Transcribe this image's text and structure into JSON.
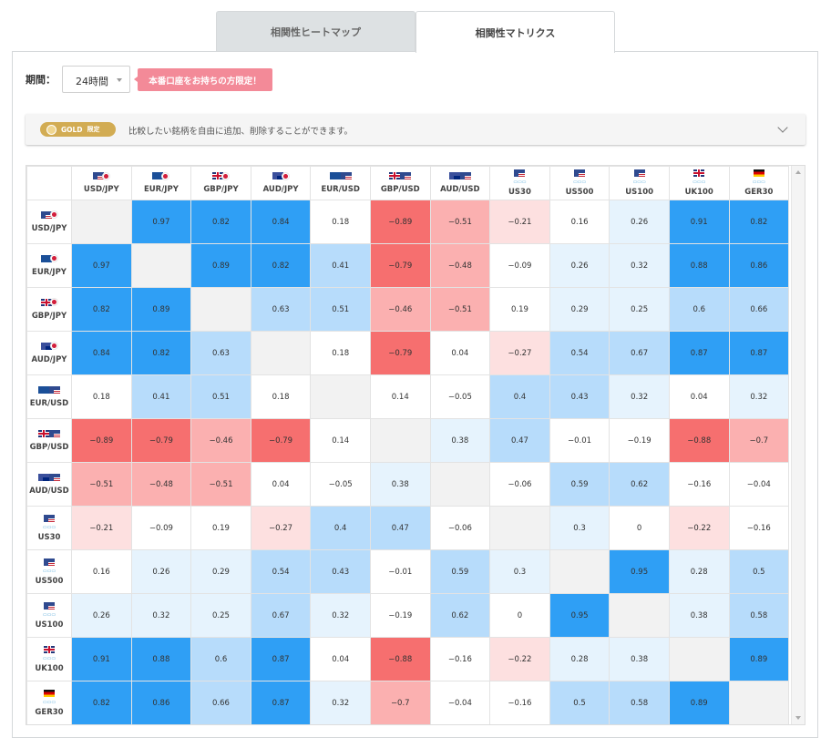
{
  "tabs": [
    {
      "label": "相関性ヒートマップ",
      "active": false
    },
    {
      "label": "相関性マトリクス",
      "active": true
    }
  ],
  "period": {
    "label": "期間：",
    "value": "24時間"
  },
  "promo": "本番口座をお持ちの方限定！",
  "gold": {
    "badge": "GOLD",
    "limit": "限定",
    "text": "比較したい銘柄を自由に追加、削除することができます。"
  },
  "colors": {
    "pos_strong": "#2f9ff5",
    "pos_mid": "#b7dcfb",
    "pos_light": "#e6f3fd",
    "neg_strong": "#f66f6f",
    "neg_mid": "#fbb0b0",
    "neg_light": "#fde0e0",
    "diag": "#f2f2f2"
  },
  "symbols": [
    {
      "name": "USD/JPY",
      "flags": [
        "us",
        "jp"
      ]
    },
    {
      "name": "EUR/JPY",
      "flags": [
        "eu",
        "jp"
      ]
    },
    {
      "name": "GBP/JPY",
      "flags": [
        "gb",
        "jp"
      ]
    },
    {
      "name": "AUD/JPY",
      "flags": [
        "au",
        "jp"
      ]
    },
    {
      "name": "EUR/USD",
      "flags": [
        "eu",
        "us"
      ]
    },
    {
      "name": "GBP/USD",
      "flags": [
        "gb",
        "us"
      ]
    },
    {
      "name": "AUD/USD",
      "flags": [
        "au",
        "us"
      ]
    },
    {
      "name": "US30",
      "flags": [
        "us"
      ]
    },
    {
      "name": "US500",
      "flags": [
        "us"
      ]
    },
    {
      "name": "US100",
      "flags": [
        "us"
      ]
    },
    {
      "name": "UK100",
      "flags": [
        "gb"
      ]
    },
    {
      "name": "GER30",
      "flags": [
        "de"
      ]
    }
  ],
  "matrix": [
    [
      null,
      0.97,
      0.82,
      0.84,
      0.18,
      -0.89,
      -0.51,
      -0.21,
      0.16,
      0.26,
      0.91,
      0.82
    ],
    [
      0.97,
      null,
      0.89,
      0.82,
      0.41,
      -0.79,
      -0.48,
      -0.09,
      0.26,
      0.32,
      0.88,
      0.86
    ],
    [
      0.82,
      0.89,
      null,
      0.63,
      0.51,
      -0.46,
      -0.51,
      0.19,
      0.29,
      0.25,
      0.6,
      0.66
    ],
    [
      0.84,
      0.82,
      0.63,
      null,
      0.18,
      -0.79,
      0.04,
      -0.27,
      0.54,
      0.67,
      0.87,
      0.87
    ],
    [
      0.18,
      0.41,
      0.51,
      0.18,
      null,
      0.14,
      -0.05,
      0.4,
      0.43,
      0.32,
      0.04,
      0.32
    ],
    [
      -0.89,
      -0.79,
      -0.46,
      -0.79,
      0.14,
      null,
      0.38,
      0.47,
      -0.01,
      -0.19,
      -0.88,
      -0.7
    ],
    [
      -0.51,
      -0.48,
      -0.51,
      0.04,
      -0.05,
      0.38,
      null,
      -0.06,
      0.59,
      0.62,
      -0.16,
      -0.04
    ],
    [
      -0.21,
      -0.09,
      0.19,
      -0.27,
      0.4,
      0.47,
      -0.06,
      null,
      0.3,
      0,
      -0.22,
      -0.16
    ],
    [
      0.16,
      0.26,
      0.29,
      0.54,
      0.43,
      -0.01,
      0.59,
      0.3,
      null,
      0.95,
      0.28,
      0.5
    ],
    [
      0.26,
      0.32,
      0.25,
      0.67,
      0.32,
      -0.19,
      0.62,
      0,
      0.95,
      null,
      0.38,
      0.58
    ],
    [
      0.91,
      0.88,
      0.6,
      0.87,
      0.04,
      -0.88,
      -0.16,
      -0.22,
      0.28,
      0.38,
      null,
      0.89
    ],
    [
      0.82,
      0.86,
      0.66,
      0.87,
      0.32,
      -0.7,
      -0.04,
      -0.16,
      0.5,
      0.58,
      0.89,
      null
    ]
  ]
}
